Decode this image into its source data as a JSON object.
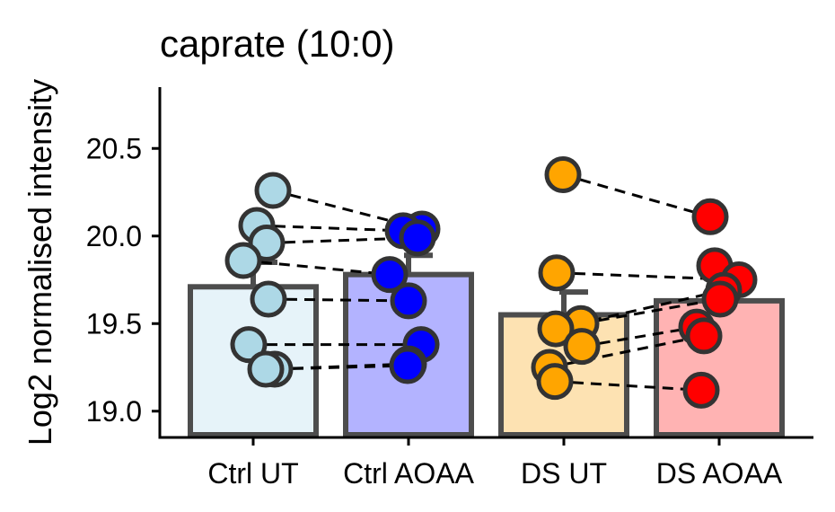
{
  "chart_data": {
    "type": "bar",
    "title": "caprate (10:0)",
    "xlabel": "",
    "ylabel": "Log2 normalised intensity",
    "ylim": [
      18.85,
      20.85
    ],
    "yticks": [
      "19.0",
      "19.5",
      "20.0",
      "20.5"
    ],
    "categories": [
      "Ctrl UT",
      "Ctrl AOAA",
      "DS UT",
      "DS AOAA"
    ],
    "bar_fill_colors": [
      "#e6f3f9",
      "#b3b3ff",
      "#fde2b2",
      "#ffb3b3"
    ],
    "point_colors": [
      "#add8e6",
      "#0000ff",
      "#ffa500",
      "#ff0000"
    ],
    "bar_outline_color": "#4d4d4d",
    "values": [
      19.71,
      19.78,
      19.55,
      19.63
    ],
    "error_upper": [
      19.85,
      19.89,
      19.68,
      19.63
    ],
    "points": [
      [
        20.26,
        20.06,
        19.96,
        19.86,
        19.64,
        19.38,
        19.24,
        19.24
      ],
      [
        20.04,
        20.03,
        19.99,
        19.78,
        19.63,
        19.38,
        19.27,
        19.26
      ],
      [
        20.35,
        19.79,
        19.5,
        19.47,
        19.37,
        19.25,
        19.17
      ],
      [
        20.11,
        19.83,
        19.75,
        19.69,
        19.64,
        19.48,
        19.43,
        19.12
      ]
    ],
    "paired_lines": [
      [
        20.26,
        20.04
      ],
      [
        20.06,
        20.03
      ],
      [
        19.96,
        19.99
      ],
      [
        19.86,
        19.78
      ],
      [
        19.64,
        19.63
      ],
      [
        19.38,
        19.38
      ],
      [
        19.24,
        19.27
      ],
      [
        19.24,
        19.26
      ],
      [
        20.35,
        20.11
      ],
      [
        19.79,
        19.75
      ],
      [
        19.5,
        19.64
      ],
      [
        19.47,
        19.69
      ],
      [
        19.37,
        19.48
      ],
      [
        19.25,
        19.43
      ],
      [
        19.17,
        19.12
      ]
    ],
    "paired_line_groups": [
      [
        0,
        1
      ],
      [
        0,
        1
      ],
      [
        0,
        1
      ],
      [
        0,
        1
      ],
      [
        0,
        1
      ],
      [
        0,
        1
      ],
      [
        0,
        1
      ],
      [
        0,
        1
      ],
      [
        2,
        3
      ],
      [
        2,
        3
      ],
      [
        2,
        3
      ],
      [
        2,
        3
      ],
      [
        2,
        3
      ],
      [
        2,
        3
      ],
      [
        2,
        3
      ]
    ],
    "grid": false,
    "legend": "none"
  }
}
